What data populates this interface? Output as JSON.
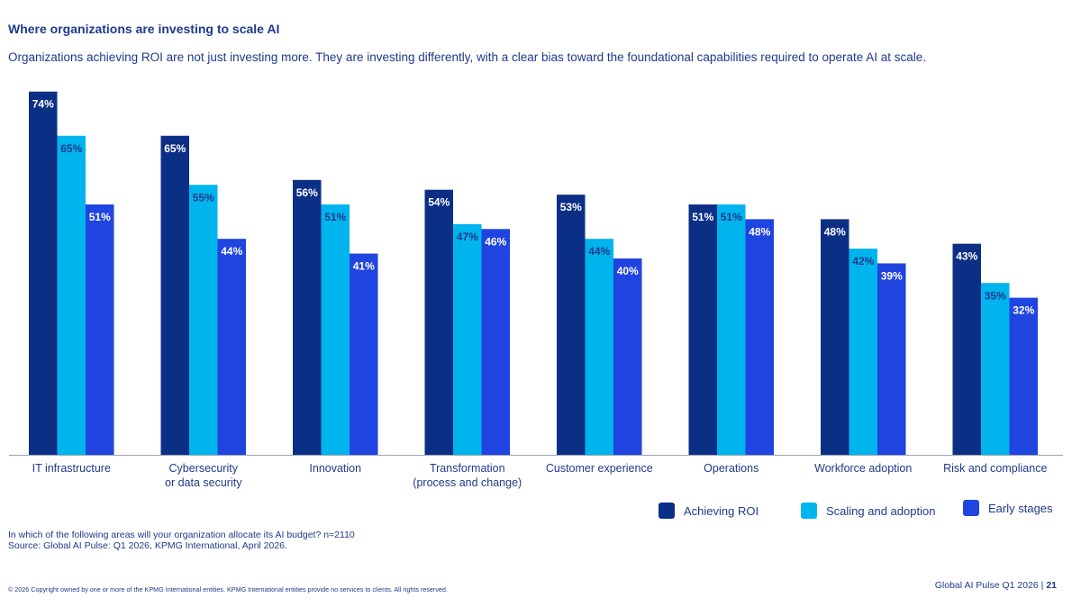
{
  "header": {
    "title": "Where organizations are investing to scale AI",
    "subtitle": "Organizations achieving ROI are not just investing more. They are investing differently, with a clear bias toward the foundational capabilities required to operate AI at scale."
  },
  "chart_data": {
    "type": "bar",
    "categories": [
      [
        "IT infrastructure"
      ],
      [
        "Cybersecurity",
        "or data security"
      ],
      [
        "Innovation"
      ],
      [
        "Transformation",
        "(process and change)"
      ],
      [
        "Customer experience"
      ],
      [
        "Operations"
      ],
      [
        "Workforce adoption"
      ],
      [
        "Risk and compliance"
      ]
    ],
    "series": [
      {
        "name": "Achieving ROI",
        "color": "#0c2f86",
        "label_color": "#ffffff",
        "values": [
          74,
          65,
          56,
          54,
          53,
          51,
          48,
          43
        ]
      },
      {
        "name": "Scaling and adoption",
        "color": "#00b4ee",
        "label_color": "#1e3a8a",
        "values": [
          65,
          55,
          51,
          47,
          44,
          51,
          42,
          35
        ]
      },
      {
        "name": "Early stages",
        "color": "#1f44e0",
        "label_color": "#ffffff",
        "values": [
          51,
          44,
          41,
          46,
          40,
          48,
          39,
          32
        ]
      }
    ],
    "value_suffix": "%",
    "ylim": [
      0,
      80
    ],
    "grid": false,
    "legend_position": "bottom-right"
  },
  "footnote": {
    "question": "In which of the following areas will your organization allocate its AI budget? n=2110",
    "source": "Source: Global AI Pulse: Q1 2026, KPMG International, April 2026."
  },
  "footer": {
    "copyright": "© 2026 Copyright owned by one or more of the KPMG International entities. KPMG International entities provide no services to clients. All rights reserved.",
    "publication": "Global AI Pulse Q1 2026 |",
    "page_number": "21"
  }
}
